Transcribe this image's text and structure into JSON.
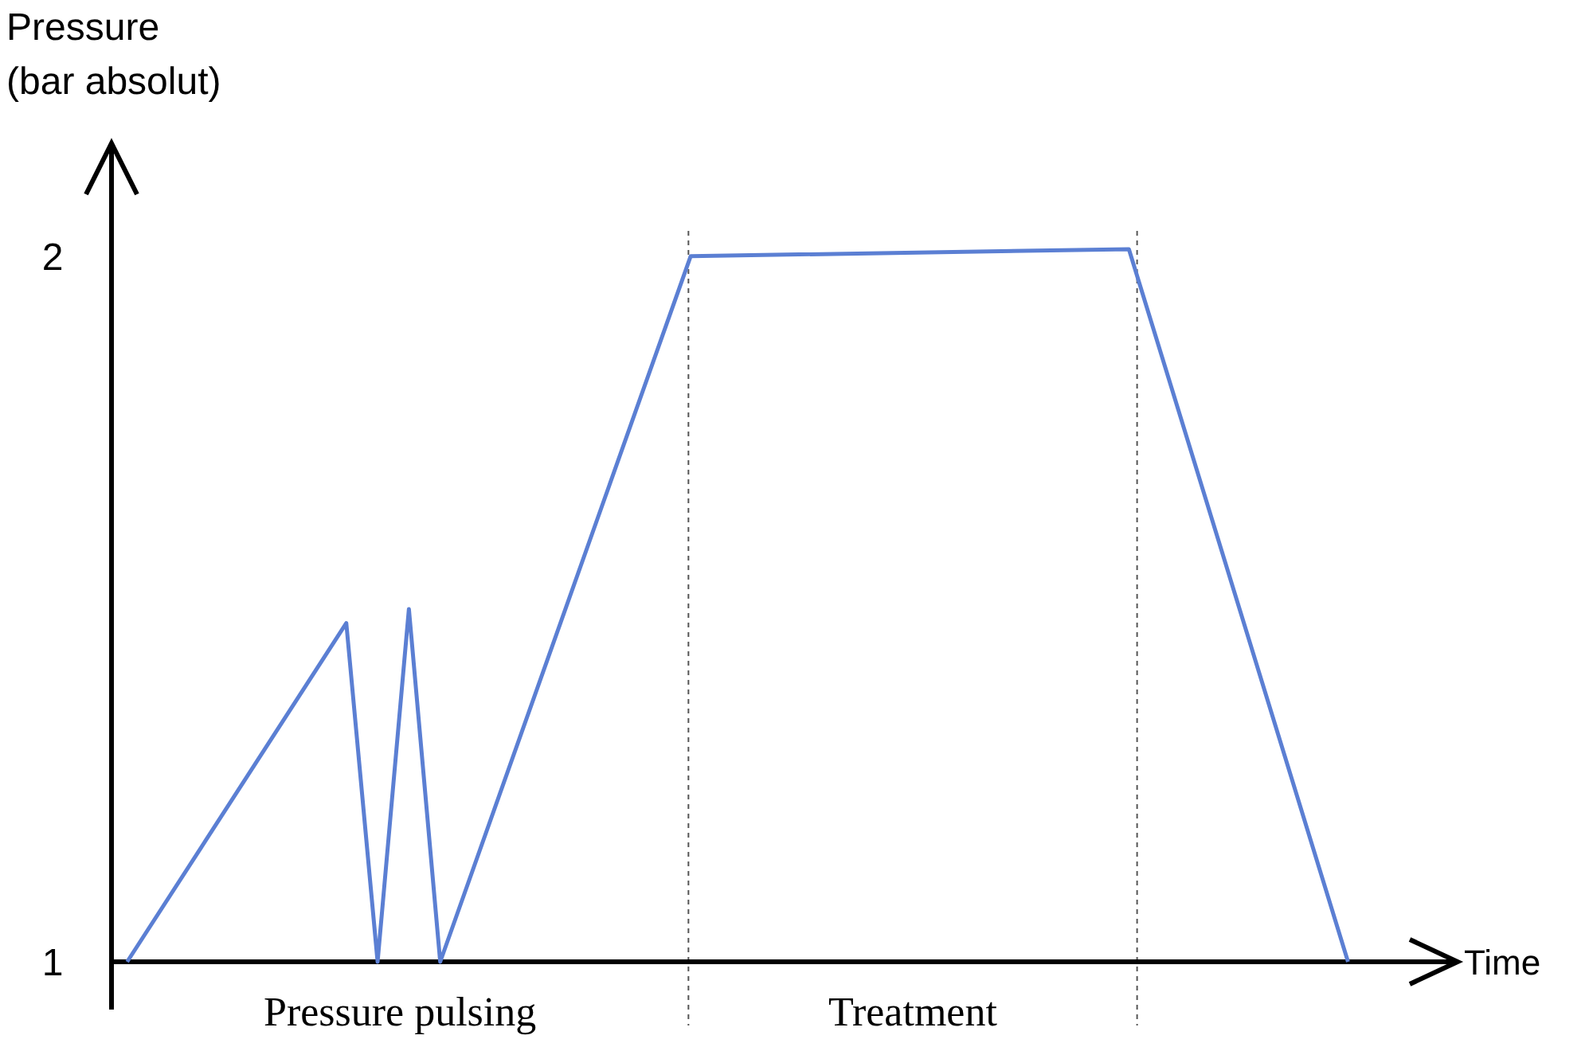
{
  "chart_data": {
    "type": "line",
    "ylabel": "Pressure\n(bar absolut)",
    "xlabel": "Time",
    "categories": [
      null,
      null,
      null,
      null,
      null,
      null,
      null,
      null,
      null,
      null,
      null,
      null,
      null,
      null,
      null,
      null,
      null,
      null,
      null,
      null,
      null,
      null,
      null,
      null,
      null,
      null,
      null,
      null,
      null,
      null,
      null,
      null,
      null,
      null,
      null,
      null,
      null,
      null,
      null,
      null,
      null,
      null,
      null
    ],
    "series": [
      {
        "color": "#5b7fd3",
        "values": [
          1,
          null,
          null,
          null,
          null,
          null,
          null,
          1.48,
          1,
          1.5,
          1,
          null,
          null,
          null,
          null,
          null,
          null,
          null,
          2,
          null,
          null,
          null,
          null,
          null,
          null,
          null,
          null,
          null,
          null,
          null,
          null,
          null,
          2.01,
          null,
          null,
          null,
          null,
          null,
          null,
          1,
          null,
          null,
          null
        ]
      }
    ],
    "ylim": [
      1,
      2.16
    ],
    "yticks": [
      1,
      2
    ],
    "annotations": [
      "Pressure pulsing",
      "Treatment"
    ]
  }
}
